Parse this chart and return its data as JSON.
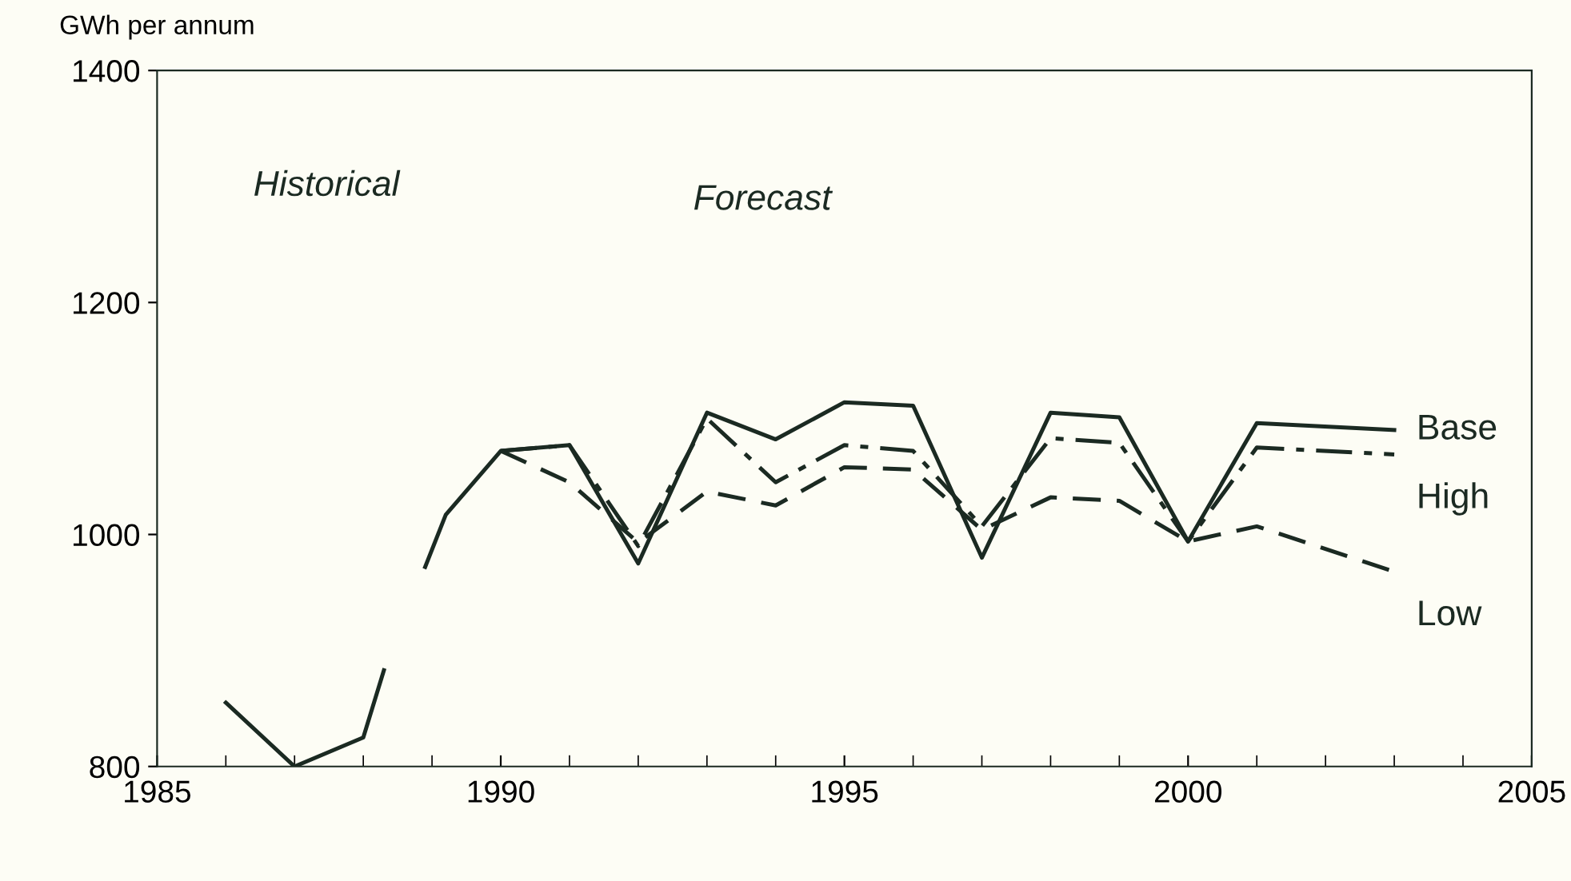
{
  "chart_data": {
    "type": "line",
    "ylabel": "GWh per annum",
    "annotations": [
      "Historical",
      "Forecast"
    ],
    "xlim": [
      1985,
      2005
    ],
    "xticks": [
      1985,
      1990,
      1995,
      2000,
      2005
    ],
    "ylim": [
      800,
      1400
    ],
    "yticks": [
      800,
      1000,
      1200,
      1400
    ],
    "grid": false,
    "legend": false,
    "marker": "none",
    "series": [
      {
        "color": "#1b2a22",
        "line_style": "solid",
        "x": [
          1986,
          1987,
          1988,
          1988.3
        ],
        "values": [
          855,
          800,
          825,
          883
        ]
      },
      {
        "name": "Base",
        "color": "#1b2a22",
        "line_style": "solid",
        "x": [
          1988.9,
          1989.2,
          1990,
          1991,
          1992,
          1993,
          1994,
          1995,
          1996,
          1997,
          1998,
          1999,
          2000,
          2001,
          2003
        ],
        "values": [
          972,
          1017,
          1072,
          1077,
          975,
          1105,
          1082,
          1114,
          1111,
          980,
          1105,
          1101,
          994,
          1096,
          1090
        ]
      },
      {
        "name": "High",
        "color": "#1b2a22",
        "line_style": "dashdot",
        "x": [
          1990,
          1991,
          1992,
          1993,
          1994,
          1995,
          1996,
          1997,
          1998,
          1999,
          2000,
          2001,
          2003
        ],
        "values": [
          1072,
          1077,
          990,
          1100,
          1045,
          1077,
          1072,
          1007,
          1083,
          1079,
          994,
          1075,
          1069
        ]
      },
      {
        "name": "Low",
        "color": "#1b2a22",
        "line_style": "dashed",
        "x": [
          1990,
          1991,
          1992,
          1993,
          1994,
          1995,
          1996,
          1997,
          1998,
          1999,
          2000,
          2001,
          2003
        ],
        "values": [
          1072,
          1045,
          993,
          1037,
          1025,
          1058,
          1056,
          1004,
          1032,
          1029,
          994,
          1007,
          968
        ]
      }
    ]
  }
}
